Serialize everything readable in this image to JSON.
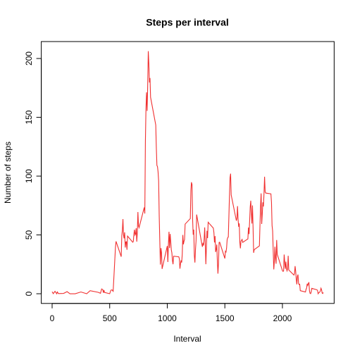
{
  "chart_data": {
    "type": "line",
    "title": "Steps per interval",
    "x_label": "Interval",
    "y_label": "Number of steps",
    "color": "#f03030",
    "x": [
      0,
      10,
      25,
      40,
      45,
      55,
      100,
      130,
      155,
      200,
      250,
      300,
      330,
      400,
      420,
      430,
      440,
      445,
      450,
      455,
      500,
      510,
      520,
      530,
      550,
      555,
      600,
      605,
      610,
      615,
      620,
      625,
      630,
      635,
      640,
      645,
      650,
      655,
      700,
      705,
      710,
      715,
      720,
      725,
      730,
      735,
      740,
      745,
      750,
      755,
      800,
      805,
      810,
      815,
      820,
      825,
      830,
      835,
      840,
      845,
      850,
      855,
      900,
      905,
      910,
      915,
      920,
      925,
      930,
      935,
      940,
      945,
      950,
      955,
      1000,
      1005,
      1010,
      1015,
      1020,
      1025,
      1030,
      1035,
      1040,
      1045,
      1050,
      1055,
      1100,
      1105,
      1110,
      1115,
      1120,
      1125,
      1130,
      1135,
      1140,
      1145,
      1150,
      1155,
      1200,
      1205,
      1210,
      1215,
      1220,
      1225,
      1230,
      1235,
      1240,
      1245,
      1250,
      1255,
      1300,
      1305,
      1310,
      1315,
      1320,
      1325,
      1330,
      1335,
      1340,
      1345,
      1350,
      1355,
      1400,
      1405,
      1410,
      1415,
      1420,
      1425,
      1430,
      1435,
      1440,
      1445,
      1450,
      1455,
      1500,
      1505,
      1510,
      1515,
      1520,
      1525,
      1530,
      1535,
      1540,
      1545,
      1550,
      1555,
      1600,
      1605,
      1610,
      1615,
      1620,
      1625,
      1630,
      1635,
      1640,
      1645,
      1650,
      1655,
      1700,
      1705,
      1710,
      1715,
      1720,
      1725,
      1730,
      1735,
      1740,
      1745,
      1750,
      1755,
      1800,
      1805,
      1810,
      1815,
      1820,
      1825,
      1830,
      1835,
      1840,
      1845,
      1850,
      1855,
      1900,
      1905,
      1910,
      1915,
      1920,
      1925,
      1930,
      1935,
      1940,
      1945,
      1950,
      1955,
      2000,
      2005,
      2010,
      2015,
      2020,
      2025,
      2030,
      2035,
      2040,
      2045,
      2050,
      2055,
      2100,
      2105,
      2110,
      2115,
      2120,
      2125,
      2130,
      2135,
      2140,
      2145,
      2150,
      2155,
      2200,
      2205,
      2210,
      2215,
      2220,
      2225,
      2230,
      2235,
      2240,
      2245,
      2250,
      2255,
      2300,
      2305,
      2310,
      2315,
      2320,
      2325,
      2330,
      2335,
      2340,
      2345,
      2350,
      2355
    ],
    "values": [
      1.7,
      0.1,
      2.1,
      0,
      1.5,
      0.1,
      0.3,
      1.8,
      0,
      0,
      1.5,
      0,
      2.6,
      1.2,
      0.4,
      4.1,
      3.5,
      0.8,
      3.1,
      1.1,
      0,
      3.0,
      3.3,
      2.1,
      39.5,
      44.5,
      31.5,
      49.3,
      53.8,
      63.5,
      50,
      47.1,
      52.2,
      39.3,
      44,
      44.2,
      37.4,
      49,
      43.8,
      44.4,
      50.5,
      54.5,
      49.9,
      50.9,
      55.7,
      44.3,
      52.3,
      69.5,
      57.8,
      56.2,
      73.4,
      68.2,
      129.4,
      157.5,
      171.2,
      155.4,
      177.3,
      206.2,
      195.9,
      179.6,
      183.4,
      167,
      143.5,
      124,
      109.1,
      108.1,
      103.7,
      96,
      66.2,
      45.2,
      24.8,
      38.8,
      35,
      21.1,
      40.6,
      27,
      42.4,
      52.7,
      38.9,
      50.8,
      44.3,
      37.4,
      34.7,
      28.3,
      25.1,
      31.9,
      31.4,
      29.7,
      21.3,
      25.5,
      28.4,
      26.5,
      33.4,
      50,
      42,
      44.6,
      46,
      59.2,
      63.9,
      87.7,
      94.8,
      92.8,
      63.4,
      50.2,
      54.5,
      32.4,
      26.5,
      37.7,
      45.1,
      67.3,
      42.3,
      39.9,
      43.3,
      41,
      46.2,
      56.4,
      42.8,
      25.1,
      40,
      53.5,
      47.3,
      60.8,
      55.8,
      52,
      43.6,
      49,
      35.5,
      37.6,
      41.8,
      27.5,
      17.1,
      26.1,
      43.6,
      43.8,
      30,
      36.1,
      35.5,
      38.8,
      46,
      47.8,
      48.1,
      65.3,
      82.9,
      98.7,
      102.1,
      84,
      62.1,
      64.1,
      74.5,
      63.2,
      56.9,
      59.8,
      43.9,
      38.6,
      44.7,
      45.5,
      46.2,
      43.7,
      46.6,
      56.3,
      50.7,
      61.2,
      73.4,
      79.1,
      68.9,
      59.7,
      75.1,
      56.5,
      34.8,
      37.5,
      40.7,
      58,
      74.7,
      85.3,
      59.3,
      67.8,
      77.7,
      74.2,
      85.3,
      99.5,
      86.6,
      85.6,
      84.9,
      77.8,
      58,
      53.4,
      36.3,
      20.7,
      27.4,
      40,
      30.2,
      25.5,
      45.7,
      33.5,
      19.6,
      19,
      19.3,
      33.3,
      26.8,
      21.2,
      27.3,
      21.3,
      19.5,
      21.3,
      32.3,
      20.2,
      15.9,
      17.2,
      23.5,
      19.2,
      12.5,
      8,
      14.7,
      16.3,
      8.7,
      7.8,
      8.1,
      2.6,
      1.5,
      3.7,
      4.8,
      8.5,
      7.1,
      8.7,
      9.8,
      2.2,
      0.3,
      0.1,
      1.6,
      4.6,
      3.3,
      2.8,
      0,
      0.8,
      1,
      1.6,
      2.6,
      4.7,
      3.3,
      0.6,
      0.2,
      1.1
    ],
    "xlim": [
      -94.2,
      2449.2
    ],
    "ylim": [
      -8.25,
      214.4
    ],
    "xticks": [
      0,
      500,
      1000,
      1500,
      2000
    ],
    "yticks": [
      0,
      50,
      100,
      150,
      200
    ]
  }
}
